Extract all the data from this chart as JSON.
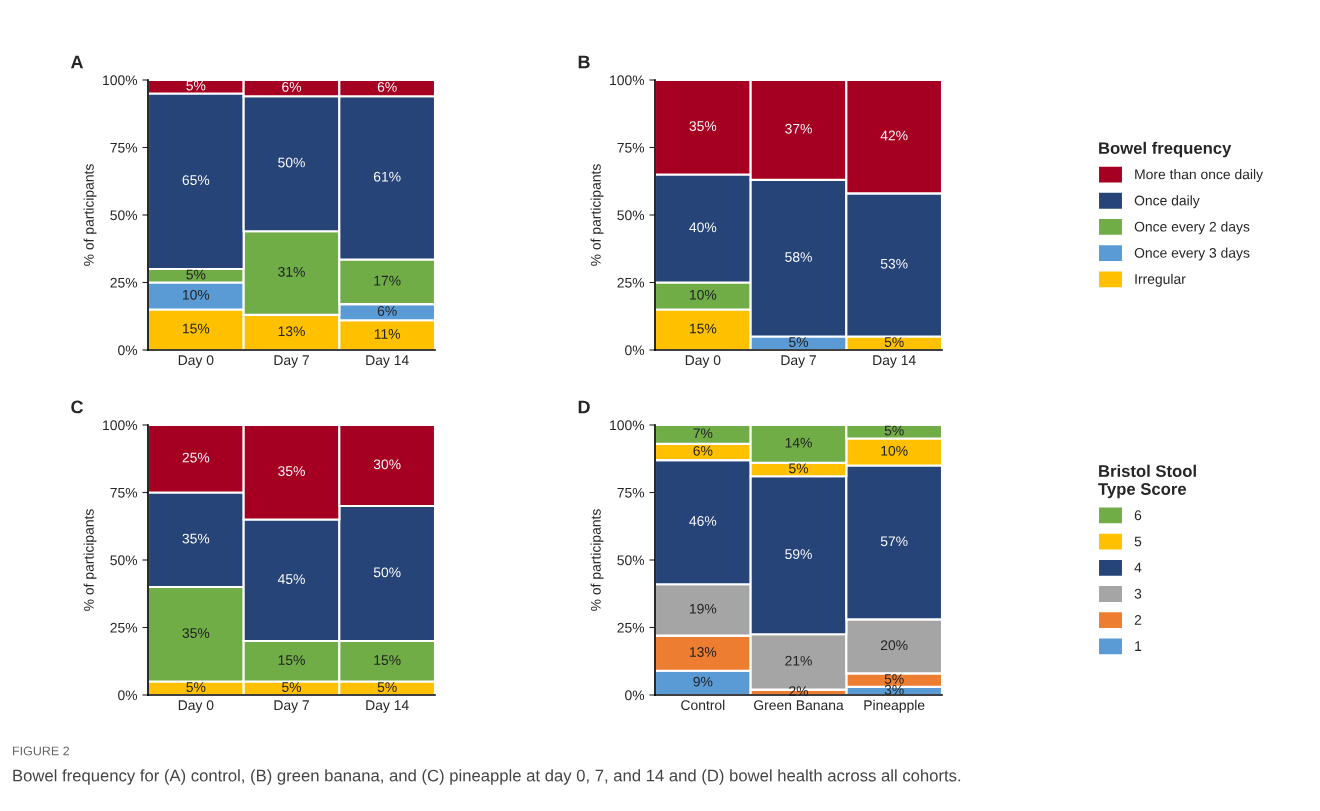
{
  "chart_data": [
    {
      "type": "bar",
      "title": "A",
      "ylabel": "% of participants",
      "stacked": true,
      "categories": [
        "Day 0",
        "Day 7",
        "Day 14"
      ],
      "ylim": [
        0,
        100
      ],
      "yticks": [
        {
          "value": 0,
          "label": "0%"
        },
        {
          "value": 25,
          "label": "25%"
        },
        {
          "value": 50,
          "label": "50%"
        },
        {
          "value": 75,
          "label": "75%"
        },
        {
          "value": 100,
          "label": "100%"
        }
      ],
      "series": [
        {
          "color": "#ffc000",
          "values": [
            15,
            13,
            11
          ],
          "value_labels": [
            "15%",
            "13%",
            "11%"
          ]
        },
        {
          "color": "#5b9bd5",
          "values": [
            10,
            null,
            6
          ],
          "value_labels": [
            "10%",
            null,
            "6%"
          ]
        },
        {
          "color": "#70ad47",
          "values": [
            5,
            31,
            16.5
          ],
          "value_labels": [
            "5%",
            "31%",
            "17%"
          ]
        },
        {
          "color": "#264478",
          "values": [
            65,
            50,
            60.5
          ],
          "value_labels": [
            "65%",
            "50%",
            "61%"
          ]
        },
        {
          "color": "#a50021",
          "values": [
            5,
            6,
            6
          ],
          "value_labels": [
            "5%",
            "6%",
            "6%"
          ]
        }
      ]
    },
    {
      "type": "bar",
      "title": "B",
      "ylabel": "% of participants",
      "stacked": true,
      "categories": [
        "Day 0",
        "Day 7",
        "Day 14"
      ],
      "ylim": [
        0,
        100
      ],
      "yticks": [
        {
          "value": 0,
          "label": "0%"
        },
        {
          "value": 25,
          "label": "25%"
        },
        {
          "value": 50,
          "label": "50%"
        },
        {
          "value": 75,
          "label": "75%"
        },
        {
          "value": 100,
          "label": "100%"
        }
      ],
      "legend": "right",
      "legend_title": "Bowel frequency",
      "series": [
        {
          "name": "Irregular",
          "color": "#ffc000",
          "values": [
            15,
            null,
            5
          ],
          "value_labels": [
            "15%",
            null,
            "5%"
          ]
        },
        {
          "name": "Once every 3 days",
          "color": "#5b9bd5",
          "values": [
            null,
            5,
            null
          ],
          "value_labels": [
            null,
            "5%",
            null
          ]
        },
        {
          "name": "Once every 2 days",
          "color": "#70ad47",
          "values": [
            10,
            null,
            null
          ],
          "value_labels": [
            "10%",
            null,
            null
          ]
        },
        {
          "name": "Once daily",
          "color": "#264478",
          "values": [
            40,
            58,
            53
          ],
          "value_labels": [
            "40%",
            "58%",
            "53%"
          ]
        },
        {
          "name": "More than once daily",
          "color": "#a50021",
          "values": [
            35,
            37,
            42
          ],
          "value_labels": [
            "35%",
            "37%",
            "42%"
          ]
        }
      ]
    },
    {
      "type": "bar",
      "title": "C",
      "ylabel": "% of participants",
      "stacked": true,
      "categories": [
        "Day 0",
        "Day 7",
        "Day 14"
      ],
      "ylim": [
        0,
        100
      ],
      "yticks": [
        {
          "value": 0,
          "label": "0%"
        },
        {
          "value": 25,
          "label": "25%"
        },
        {
          "value": 50,
          "label": "50%"
        },
        {
          "value": 75,
          "label": "75%"
        },
        {
          "value": 100,
          "label": "100%"
        }
      ],
      "series": [
        {
          "color": "#ffc000",
          "values": [
            5,
            5,
            5
          ],
          "value_labels": [
            "5%",
            "5%",
            "5%"
          ]
        },
        {
          "color": "#70ad47",
          "values": [
            35,
            15,
            15
          ],
          "value_labels": [
            "35%",
            "15%",
            "15%"
          ]
        },
        {
          "color": "#264478",
          "values": [
            35,
            45,
            50
          ],
          "value_labels": [
            "35%",
            "45%",
            "50%"
          ]
        },
        {
          "color": "#a50021",
          "values": [
            25,
            35,
            30
          ],
          "value_labels": [
            "25%",
            "35%",
            "30%"
          ]
        }
      ]
    },
    {
      "type": "bar",
      "title": "D",
      "ylabel": "% of participants",
      "stacked": true,
      "categories": [
        "Control",
        "Green Banana",
        "Pineapple"
      ],
      "ylim": [
        0,
        100
      ],
      "yticks": [
        {
          "value": 0,
          "label": "0%"
        },
        {
          "value": 25,
          "label": "25%"
        },
        {
          "value": 50,
          "label": "50%"
        },
        {
          "value": 75,
          "label": "75%"
        },
        {
          "value": 100,
          "label": "100%"
        }
      ],
      "legend": "right",
      "legend_title": "Bristol Stool\nType Score",
      "annotations": [
        "FIGURE 2",
        "Bowel frequency for (A) control, (B) green banana, and (C) pineapple at day 0, 7, and 14 and (D) bowel health across all cohorts."
      ],
      "series": [
        {
          "name": "1",
          "color": "#5b9bd5",
          "values": [
            9,
            null,
            3
          ],
          "value_labels": [
            "9%",
            null,
            "3%"
          ]
        },
        {
          "name": "2",
          "color": "#ed7d31",
          "values": [
            13,
            2,
            5
          ],
          "value_labels": [
            "13%",
            "2%",
            "5%"
          ]
        },
        {
          "name": "3",
          "color": "#a5a5a5",
          "values": [
            19,
            20.5,
            20
          ],
          "value_labels": [
            "19%",
            "21%",
            "20%"
          ]
        },
        {
          "name": "4",
          "color": "#264478",
          "values": [
            46,
            58.5,
            57
          ],
          "value_labels": [
            "46%",
            "59%",
            "57%"
          ]
        },
        {
          "name": "5",
          "color": "#ffc000",
          "values": [
            6,
            5,
            10
          ],
          "value_labels": [
            "6%",
            "5%",
            "10%"
          ]
        },
        {
          "name": "6",
          "color": "#70ad47",
          "values": [
            7,
            14,
            5
          ],
          "value_labels": [
            "7%",
            "14%",
            "5%"
          ]
        }
      ]
    }
  ]
}
